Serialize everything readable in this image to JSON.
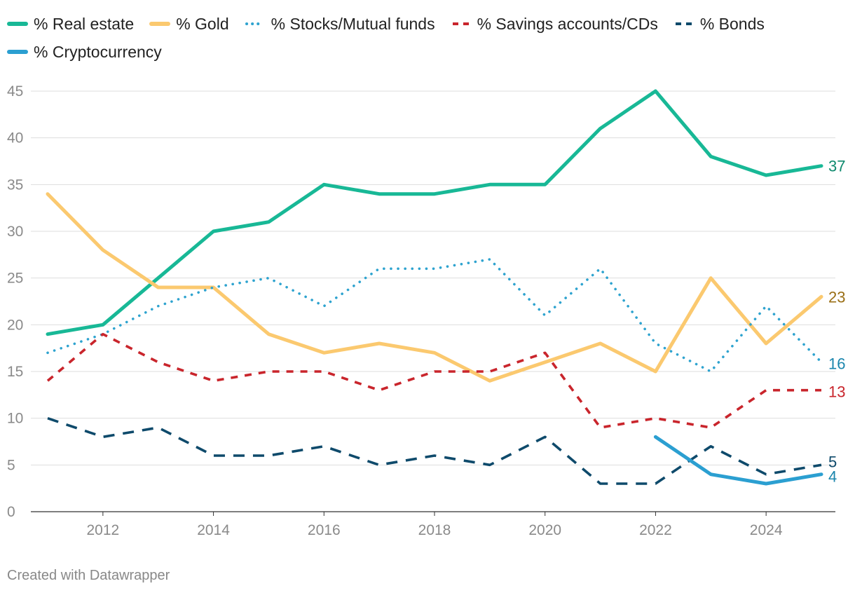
{
  "chart_data": {
    "type": "line",
    "title": "",
    "xlabel": "",
    "ylabel": "",
    "x": [
      2011,
      2012,
      2013,
      2014,
      2015,
      2016,
      2017,
      2018,
      2019,
      2020,
      2021,
      2022,
      2023,
      2024,
      2025
    ],
    "xlim": [
      2011,
      2025
    ],
    "ylim": [
      0,
      45
    ],
    "x_ticks": [
      2012,
      2014,
      2016,
      2018,
      2020,
      2022,
      2024
    ],
    "y_ticks": [
      0,
      5,
      10,
      15,
      20,
      25,
      30,
      35,
      40,
      45
    ],
    "grid": "horizontal",
    "series": [
      {
        "name": "% Real estate",
        "color": "#18b896",
        "dash": "solid",
        "values": [
          19,
          20,
          25,
          30,
          31,
          35,
          34,
          34,
          35,
          35,
          41,
          45,
          38,
          36,
          37
        ],
        "end_label": "37",
        "end_label_color": "#0f8a6e"
      },
      {
        "name": "% Gold",
        "color": "#fbc96f",
        "dash": "solid",
        "values": [
          34,
          28,
          24,
          24,
          19,
          17,
          18,
          17,
          14,
          16,
          18,
          15,
          25,
          18,
          23
        ],
        "end_label": "23",
        "end_label_color": "#9a6f16"
      },
      {
        "name": "% Stocks/Mutual funds",
        "color": "#2ea3cf",
        "dash": "dotted",
        "values": [
          17,
          19,
          22,
          24,
          25,
          22,
          26,
          26,
          27,
          21,
          26,
          18,
          15,
          22,
          16
        ],
        "end_label": "16",
        "end_label_color": "#1b86ad"
      },
      {
        "name": "% Savings accounts/CDs",
        "color": "#c9252c",
        "dash": "dashed",
        "values": [
          14,
          19,
          16,
          14,
          15,
          15,
          13,
          15,
          15,
          17,
          9,
          10,
          9,
          13,
          13
        ],
        "end_label": "13",
        "end_label_color": "#c9252c"
      },
      {
        "name": "% Bonds",
        "color": "#0e4a6b",
        "dash": "longdash",
        "values": [
          10,
          8,
          9,
          6,
          6,
          7,
          5,
          6,
          5,
          8,
          3,
          3,
          7,
          4,
          5
        ],
        "end_label": "5",
        "end_label_color": "#0e4a6b"
      },
      {
        "name": "% Cryptocurrency",
        "color": "#2b9fd1",
        "dash": "solid",
        "values": [
          null,
          null,
          null,
          null,
          null,
          null,
          null,
          null,
          null,
          null,
          null,
          8,
          4,
          3,
          4
        ],
        "end_label": "4",
        "end_label_color": "#1b86ad"
      }
    ]
  },
  "credit": "Created with Datawrapper"
}
